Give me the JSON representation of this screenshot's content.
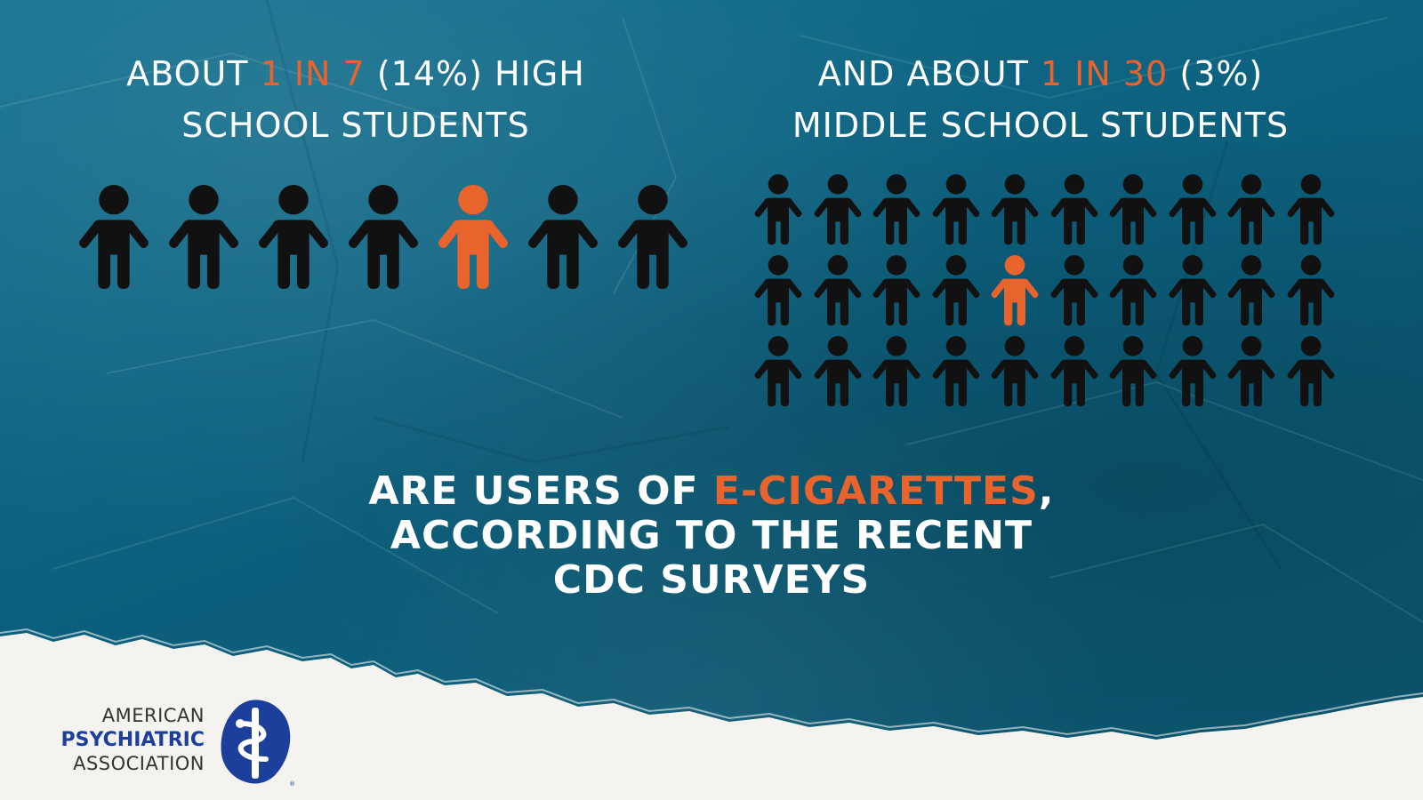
{
  "heading_left": {
    "pre": "ABOUT ",
    "highlight": "1 IN 7",
    "post": " (14%) HIGH",
    "line2": "SCHOOL STUDENTS"
  },
  "heading_right": {
    "pre": "AND ABOUT ",
    "highlight": "1 IN 30",
    "post": " (3%)",
    "line2": "MIDDLE SCHOOL STUDENTS"
  },
  "icons_left": {
    "count": 7,
    "highlight_index": 4
  },
  "icons_right": {
    "rows": 3,
    "cols": 10,
    "highlight_index": 14
  },
  "caption": {
    "line1_pre": "ARE USERS OF ",
    "line1_highlight": "E-CIGARETTES",
    "line1_post": ",",
    "line2": "ACCORDING TO THE RECENT",
    "line3": "CDC SURVEYS"
  },
  "logo": {
    "line1": "AMERICAN",
    "line2": "PSYCHIATRIC",
    "line3": "ASSOCIATION"
  },
  "colors": {
    "background": "#0e6280",
    "highlight": "#e8642c",
    "icon_dark": "#111111",
    "paper": "#f4f3ef",
    "logo_blue": "#1d3f9c"
  },
  "icon_names": {
    "person": "person-icon",
    "logo_mark": "apa-logo-icon"
  }
}
